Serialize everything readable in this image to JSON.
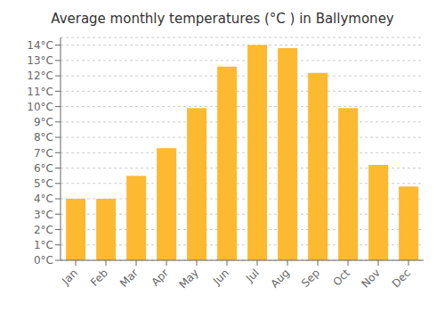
{
  "chart_data": {
    "type": "bar",
    "title": "Average monthly temperatures (°C ) in Ballymoney",
    "categories": [
      "Jan",
      "Feb",
      "Mar",
      "Apr",
      "May",
      "Jun",
      "Jul",
      "Aug",
      "Sep",
      "Oct",
      "Nov",
      "Dec"
    ],
    "values": [
      4.0,
      4.0,
      5.5,
      7.3,
      9.9,
      12.6,
      14.0,
      13.8,
      12.2,
      9.9,
      6.2,
      4.8
    ],
    "color": "#FDB930",
    "ylim": [
      0,
      14.5
    ],
    "yticks": [
      {
        "value": 0,
        "label": "0°C"
      },
      {
        "value": 1,
        "label": "1°C"
      },
      {
        "value": 2,
        "label": "2°C"
      },
      {
        "value": 3,
        "label": "3°C"
      },
      {
        "value": 4,
        "label": "4°C"
      },
      {
        "value": 5,
        "label": "5°C"
      },
      {
        "value": 6,
        "label": "6°C"
      },
      {
        "value": 7,
        "label": "7°C"
      },
      {
        "value": 8,
        "label": "8°C"
      },
      {
        "value": 9,
        "label": "9°C"
      },
      {
        "value": 10,
        "label": "10°C"
      },
      {
        "value": 11,
        "label": "11°C"
      },
      {
        "value": 12,
        "label": "12°C"
      },
      {
        "value": 13,
        "label": "13°C"
      },
      {
        "value": 14,
        "label": "14°C"
      }
    ],
    "grid": true
  }
}
